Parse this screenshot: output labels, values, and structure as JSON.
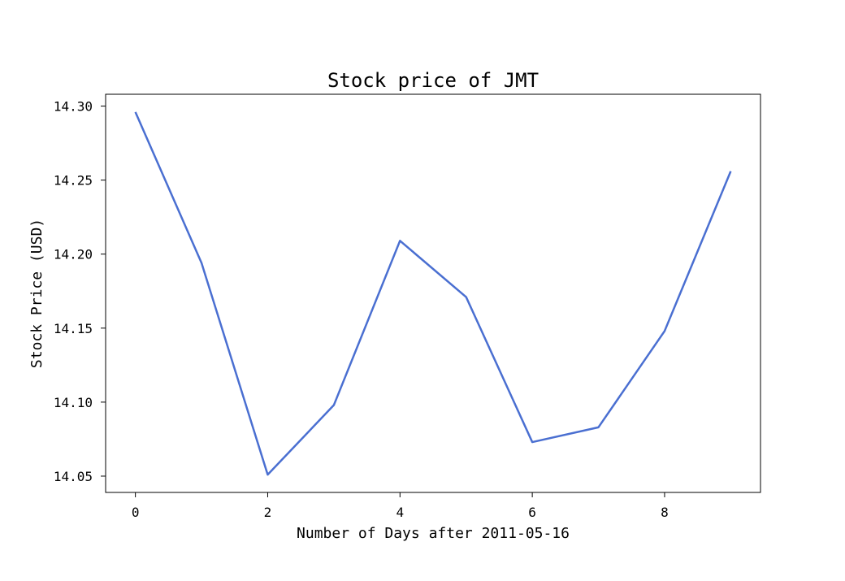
{
  "chart_data": {
    "type": "line",
    "title": "Stock price of JMT",
    "xlabel": "Number of Days after 2011-05-16",
    "ylabel": "Stock Price (USD)",
    "x": [
      0,
      1,
      2,
      3,
      4,
      5,
      6,
      7,
      8,
      9
    ],
    "series": [
      {
        "values": [
          14.296,
          14.194,
          14.051,
          14.098,
          14.209,
          14.171,
          14.073,
          14.083,
          14.148,
          14.256
        ],
        "color": "#4a6fd1"
      }
    ],
    "xlim": [
      -0.45,
      9.45
    ],
    "ylim": [
      14.039,
      14.308
    ],
    "xticks": [
      0,
      2,
      4,
      6,
      8
    ],
    "xtick_labels": [
      "0",
      "2",
      "4",
      "6",
      "8"
    ],
    "yticks": [
      14.05,
      14.1,
      14.15,
      14.2,
      14.25,
      14.3
    ],
    "ytick_labels": [
      "14.05",
      "14.10",
      "14.15",
      "14.20",
      "14.25",
      "14.30"
    ],
    "grid": false,
    "legend": "none"
  }
}
